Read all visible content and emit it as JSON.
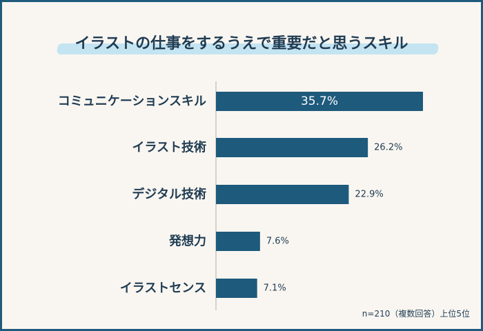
{
  "title": "イラストの仕事をするうえで重要だと思うスキル",
  "footnote": "n=210（複数回答）上位5位",
  "colors": {
    "bar": "#1e5a7c",
    "background": "#f9f6f1",
    "text": "#1f3b52",
    "highlight": "#c4e4f2"
  },
  "chart_data": {
    "type": "bar",
    "orientation": "horizontal",
    "categories": [
      "コミュニケーションスキル",
      "イラスト技術",
      "デジタル技術",
      "発想力",
      "イラストセンス"
    ],
    "values": [
      35.7,
      26.2,
      22.9,
      7.6,
      7.1
    ],
    "value_labels": [
      "35.7%",
      "26.2%",
      "22.9%",
      "7.6%",
      "7.1%"
    ],
    "unit": "%",
    "xlim": [
      0,
      45
    ],
    "grid": false,
    "legend": "none"
  }
}
